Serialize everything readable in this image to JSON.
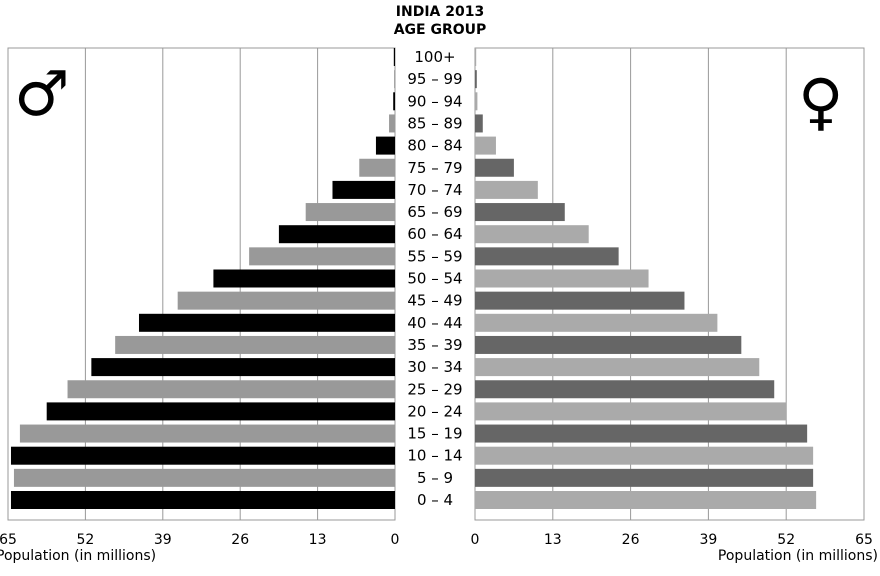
{
  "chart_data": {
    "type": "bar",
    "title": "INDIA 2013",
    "subtitle": "AGE GROUP",
    "categories": [
      "0 – 4",
      "5 – 9",
      "10 – 14",
      "15 – 19",
      "20 – 24",
      "25 – 29",
      "30 – 34",
      "35 – 39",
      "40 – 44",
      "45 – 49",
      "50 – 54",
      "55 – 59",
      "60 – 64",
      "65 – 69",
      "70 – 74",
      "75 – 79",
      "80 – 84",
      "85 – 89",
      "90 – 94",
      "95 – 99",
      "100+"
    ],
    "series": [
      {
        "name": "♂",
        "values": [
          64.5,
          64.0,
          64.5,
          63.0,
          58.5,
          55.0,
          51.0,
          47.0,
          43.0,
          36.5,
          30.5,
          24.5,
          19.5,
          15.0,
          10.5,
          6.0,
          3.2,
          1.0,
          0.3,
          0.15,
          0.2
        ]
      },
      {
        "name": "♀",
        "values": [
          57.0,
          56.5,
          56.5,
          55.5,
          52.0,
          50.0,
          47.5,
          44.5,
          40.5,
          35.0,
          29.0,
          24.0,
          19.0,
          15.0,
          10.5,
          6.5,
          3.5,
          1.3,
          0.4,
          0.3,
          0.2
        ]
      }
    ],
    "left_axis": {
      "ticks": [
        "65",
        "52",
        "39",
        "26",
        "13",
        "0"
      ],
      "label": "Population (in millions)",
      "range": [
        0,
        65
      ]
    },
    "right_axis": {
      "ticks": [
        "0",
        "13",
        "26",
        "39",
        "52",
        "65"
      ],
      "label": "Population (in millions)",
      "range": [
        0,
        65
      ]
    },
    "grid": true
  },
  "colors": {
    "male_dark": "#000000",
    "male_light": "#999999",
    "female_dark": "#666666",
    "female_light": "#aaaaaa",
    "grid": "#999999"
  },
  "icons": {
    "male": "male-symbol-icon",
    "female": "female-symbol-icon"
  }
}
